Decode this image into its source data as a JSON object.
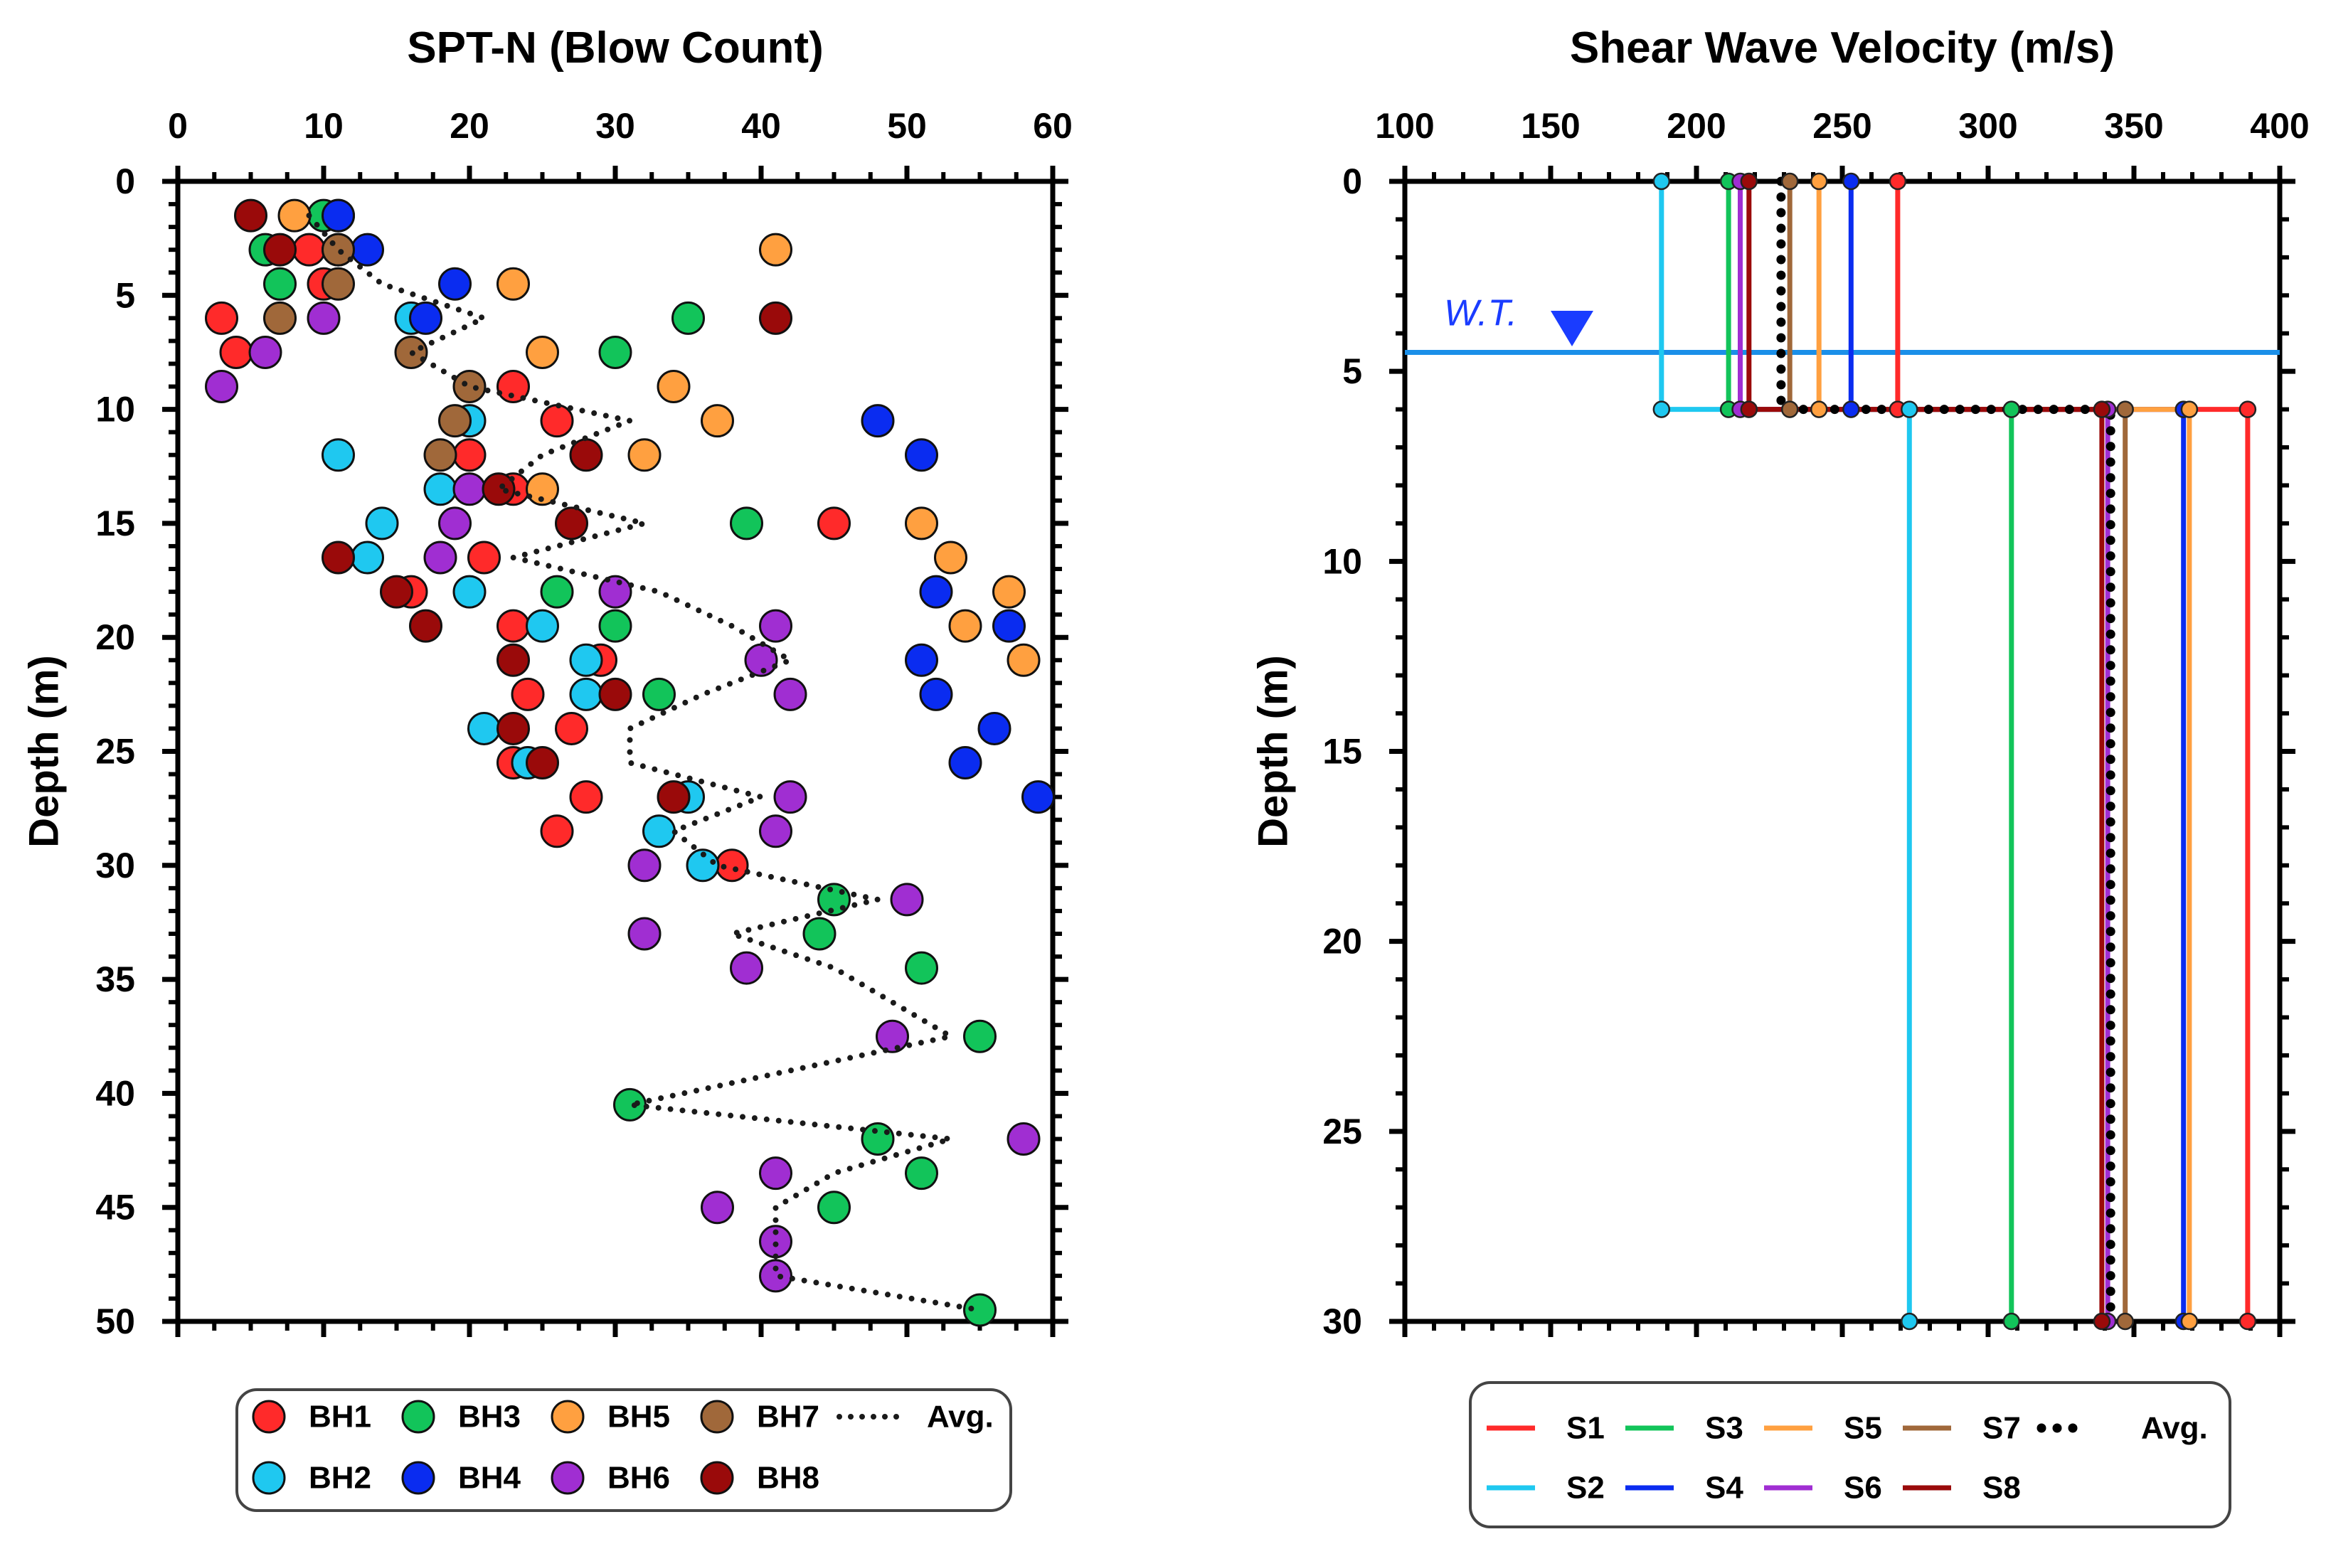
{
  "chart_data": [
    {
      "type": "scatter",
      "title": "SPT-N (Blow Count)",
      "xlabel": "",
      "ylabel": "Depth (m)",
      "xlim": [
        0,
        60
      ],
      "ylim": [
        0,
        50
      ],
      "x_axis_position": "top",
      "y_inverted": true,
      "grid": false,
      "legend_position": "bottom",
      "x_ticks": [
        "0",
        "10",
        "20",
        "30",
        "40",
        "50",
        "60"
      ],
      "y_ticks": [
        "0",
        "5",
        "10",
        "15",
        "20",
        "25",
        "30",
        "35",
        "40",
        "45",
        "50"
      ],
      "series": [
        {
          "name": "BH1",
          "color": "#ff2a2a",
          "points": [
            [
              9,
              3
            ],
            [
              10,
              4.5
            ],
            [
              3,
              6
            ],
            [
              4,
              7.5
            ],
            [
              23,
              9
            ],
            [
              26,
              10.5
            ],
            [
              20,
              12
            ],
            [
              23,
              13.5
            ],
            [
              45,
              15
            ],
            [
              21,
              16.5
            ],
            [
              16,
              18
            ],
            [
              23,
              19.5
            ],
            [
              29,
              21
            ],
            [
              24,
              22.5
            ],
            [
              27,
              24
            ],
            [
              23,
              25.5
            ],
            [
              28,
              27
            ],
            [
              26,
              28.5
            ],
            [
              38,
              30
            ]
          ]
        },
        {
          "name": "BH2",
          "color": "#1fc8f0",
          "points": [
            [
              11,
              1.5
            ],
            [
              11,
              3
            ],
            [
              16,
              6
            ],
            [
              20,
              10.5
            ],
            [
              11,
              12
            ],
            [
              18,
              13.5
            ],
            [
              14,
              15
            ],
            [
              13,
              16.5
            ],
            [
              20,
              18
            ],
            [
              25,
              19.5
            ],
            [
              28,
              21
            ],
            [
              28,
              22.5
            ],
            [
              21,
              24
            ],
            [
              24,
              25.5
            ],
            [
              35,
              27
            ],
            [
              33,
              28.5
            ],
            [
              36,
              30
            ]
          ]
        },
        {
          "name": "BH3",
          "color": "#12c45a",
          "points": [
            [
              10,
              1.5
            ],
            [
              6,
              3
            ],
            [
              7,
              4.5
            ],
            [
              35,
              6
            ],
            [
              30,
              7.5
            ],
            [
              39,
              15
            ],
            [
              26,
              18
            ],
            [
              30,
              19.5
            ],
            [
              33,
              22.5
            ],
            [
              45,
              31.5
            ],
            [
              44,
              33
            ],
            [
              51,
              34.5
            ],
            [
              55,
              37.5
            ],
            [
              31,
              40.5
            ],
            [
              48,
              42
            ],
            [
              51,
              43.5
            ],
            [
              45,
              45
            ],
            [
              55,
              49.5
            ]
          ]
        },
        {
          "name": "BH4",
          "color": "#0a2cf0",
          "points": [
            [
              11,
              1.5
            ],
            [
              13,
              3
            ],
            [
              19,
              4.5
            ],
            [
              17,
              6
            ],
            [
              48,
              10.5
            ],
            [
              51,
              12
            ],
            [
              52,
              18
            ],
            [
              57,
              19.5
            ],
            [
              51,
              21
            ],
            [
              52,
              22.5
            ],
            [
              56,
              24
            ],
            [
              54,
              25.5
            ],
            [
              59,
              27
            ]
          ]
        },
        {
          "name": "BH5",
          "color": "#ffa040",
          "points": [
            [
              8,
              1.5
            ],
            [
              41,
              3
            ],
            [
              23,
              4.5
            ],
            [
              25,
              7.5
            ],
            [
              34,
              9
            ],
            [
              37,
              10.5
            ],
            [
              32,
              12
            ],
            [
              25,
              13.5
            ],
            [
              51,
              15
            ],
            [
              53,
              16.5
            ],
            [
              57,
              18
            ],
            [
              54,
              19.5
            ],
            [
              58,
              21
            ]
          ]
        },
        {
          "name": "BH6",
          "color": "#a02ed2",
          "points": [
            [
              6,
              7.5
            ],
            [
              3,
              9
            ],
            [
              10,
              6
            ],
            [
              20,
              13.5
            ],
            [
              19,
              15
            ],
            [
              18,
              16.5
            ],
            [
              30,
              18
            ],
            [
              41,
              19.5
            ],
            [
              40,
              21
            ],
            [
              42,
              22.5
            ],
            [
              42,
              27
            ],
            [
              41,
              28.5
            ],
            [
              32,
              30
            ],
            [
              50,
              31.5
            ],
            [
              32,
              33
            ],
            [
              39,
              34.5
            ],
            [
              49,
              37.5
            ],
            [
              58,
              42
            ],
            [
              41,
              43.5
            ],
            [
              37,
              45
            ],
            [
              41,
              46.5
            ],
            [
              41,
              48
            ]
          ]
        },
        {
          "name": "BH7",
          "color": "#a0683a",
          "points": [
            [
              11,
              3
            ],
            [
              11,
              4.5
            ],
            [
              7,
              6
            ],
            [
              16,
              7.5
            ],
            [
              20,
              9
            ],
            [
              19,
              10.5
            ],
            [
              18,
              12
            ]
          ]
        },
        {
          "name": "BH8",
          "color": "#9a0a0a",
          "points": [
            [
              5,
              1.5
            ],
            [
              7,
              3
            ],
            [
              41,
              6
            ],
            [
              28,
              12
            ],
            [
              22,
              13.5
            ],
            [
              27,
              15
            ],
            [
              11,
              16.5
            ],
            [
              15,
              18
            ],
            [
              17,
              19.5
            ],
            [
              23,
              21
            ],
            [
              30,
              22.5
            ],
            [
              23,
              24
            ],
            [
              25,
              25.5
            ],
            [
              34,
              27
            ]
          ]
        },
        {
          "name": "Avg.",
          "color": "#1a1a1a",
          "style": "dotted",
          "points": [
            [
              9,
              1.5
            ],
            [
              11,
              3
            ],
            [
              14,
              4.5
            ],
            [
              21,
              6
            ],
            [
              16,
              7.5
            ],
            [
              20,
              9
            ],
            [
              31,
              10.5
            ],
            [
              25,
              12
            ],
            [
              22,
              13.5
            ],
            [
              32,
              15
            ],
            [
              23,
              16.5
            ],
            [
              33,
              18
            ],
            [
              38,
              19.5
            ],
            [
              42,
              21
            ],
            [
              36,
              22.5
            ],
            [
              31,
              24
            ],
            [
              31,
              25.5
            ],
            [
              40,
              27
            ],
            [
              34,
              28.5
            ],
            [
              37,
              30
            ],
            [
              48,
              31.5
            ],
            [
              38,
              33
            ],
            [
              45,
              34.5
            ],
            [
              53,
              37.5
            ],
            [
              31,
              40.5
            ],
            [
              53,
              42
            ],
            [
              45,
              43.5
            ],
            [
              41,
              45
            ],
            [
              41,
              46.5
            ],
            [
              41,
              48
            ],
            [
              55,
              49.5
            ]
          ]
        }
      ]
    },
    {
      "type": "line",
      "title": "Shear Wave Velocity (m/s)",
      "xlabel": "",
      "ylabel": "Depth (m)",
      "xlim": [
        100,
        400
      ],
      "ylim": [
        0,
        30
      ],
      "x_axis_position": "top",
      "y_inverted": true,
      "grid": false,
      "legend_position": "bottom",
      "x_ticks": [
        "100",
        "150",
        "200",
        "250",
        "300",
        "350",
        "400"
      ],
      "y_ticks": [
        "0",
        "5",
        "10",
        "15",
        "20",
        "25",
        "30"
      ],
      "annotation": {
        "text": "W.T.",
        "depth": 4.5,
        "color": "#1a8fe8"
      },
      "layer_depths": [
        0,
        6,
        30
      ],
      "series": [
        {
          "name": "S1",
          "color": "#ff2a2a",
          "vs": [
            269,
            389
          ]
        },
        {
          "name": "S2",
          "color": "#1fc8f0",
          "vs": [
            188,
            273
          ]
        },
        {
          "name": "S3",
          "color": "#12c45a",
          "vs": [
            211,
            308
          ]
        },
        {
          "name": "S4",
          "color": "#0a2cf0",
          "vs": [
            253,
            367
          ]
        },
        {
          "name": "S5",
          "color": "#ffa040",
          "vs": [
            242,
            369
          ]
        },
        {
          "name": "S6",
          "color": "#a02ed2",
          "vs": [
            215,
            341
          ]
        },
        {
          "name": "S7",
          "color": "#a0683a",
          "vs": [
            232,
            347
          ]
        },
        {
          "name": "S8",
          "color": "#9a0a0a",
          "vs": [
            218,
            339
          ]
        },
        {
          "name": "Avg.",
          "color": "#000000",
          "style": "dotted",
          "vs": [
            229,
            342
          ]
        }
      ]
    }
  ]
}
